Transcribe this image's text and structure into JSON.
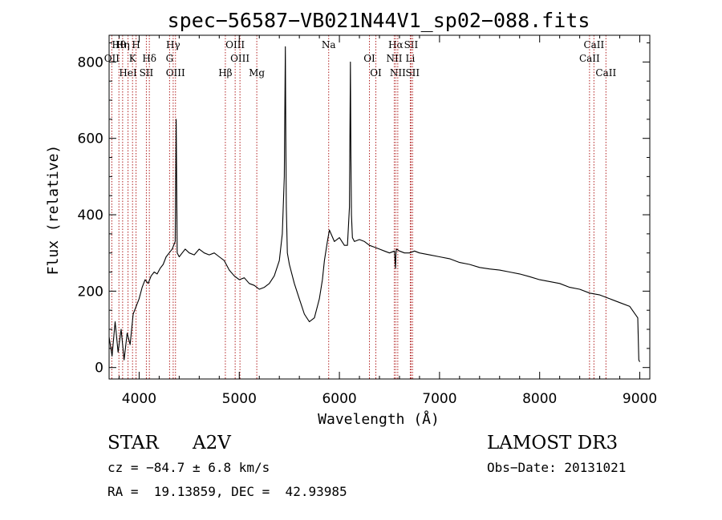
{
  "chart_data": {
    "type": "line",
    "title": "spec−56587−VB021N44V1_sp02−088.fits",
    "xlabel": "Wavelength (Å)",
    "ylabel": "Flux (relative)",
    "xlim": [
      3700,
      9100
    ],
    "ylim": [
      -30,
      870
    ],
    "x_ticks": [
      4000,
      5000,
      6000,
      7000,
      8000,
      9000
    ],
    "y_ticks": [
      0,
      200,
      400,
      600,
      800
    ],
    "grid": false,
    "series": [
      {
        "name": "flux",
        "x": [
          3700,
          3730,
          3760,
          3790,
          3820,
          3850,
          3880,
          3910,
          3940,
          3970,
          4000,
          4030,
          4060,
          4090,
          4120,
          4150,
          4180,
          4210,
          4240,
          4270,
          4300,
          4330,
          4360,
          4370,
          4380,
          4400,
          4430,
          4460,
          4500,
          4550,
          4600,
          4650,
          4700,
          4750,
          4800,
          4850,
          4900,
          4950,
          5000,
          5050,
          5100,
          5150,
          5200,
          5250,
          5300,
          5350,
          5400,
          5430,
          5450,
          5460,
          5465,
          5470,
          5480,
          5500,
          5550,
          5600,
          5650,
          5700,
          5750,
          5800,
          5830,
          5850,
          5880,
          5900,
          5950,
          6000,
          6050,
          6080,
          6100,
          6110,
          6115,
          6120,
          6130,
          6150,
          6200,
          6250,
          6300,
          6350,
          6400,
          6450,
          6500,
          6550,
          6560,
          6565,
          6570,
          6600,
          6650,
          6700,
          6750,
          6800,
          6900,
          7000,
          7100,
          7200,
          7300,
          7400,
          7500,
          7600,
          7700,
          7800,
          7900,
          8000,
          8100,
          8200,
          8300,
          8400,
          8500,
          8600,
          8700,
          8800,
          8900,
          8980,
          8990,
          9000
        ],
        "y": [
          80,
          30,
          120,
          40,
          100,
          20,
          90,
          60,
          140,
          160,
          180,
          210,
          230,
          220,
          240,
          250,
          245,
          260,
          270,
          290,
          300,
          310,
          330,
          650,
          300,
          290,
          300,
          310,
          300,
          295,
          310,
          300,
          295,
          300,
          290,
          280,
          255,
          240,
          230,
          235,
          220,
          215,
          205,
          210,
          220,
          240,
          280,
          350,
          500,
          840,
          600,
          420,
          300,
          270,
          220,
          180,
          140,
          120,
          130,
          180,
          230,
          280,
          330,
          360,
          330,
          340,
          320,
          320,
          420,
          800,
          560,
          400,
          340,
          330,
          335,
          330,
          320,
          315,
          310,
          305,
          300,
          305,
          260,
          300,
          310,
          305,
          300,
          300,
          305,
          300,
          295,
          290,
          285,
          275,
          270,
          262,
          258,
          255,
          250,
          245,
          238,
          230,
          225,
          220,
          210,
          205,
          195,
          190,
          180,
          170,
          160,
          130,
          20,
          15
        ]
      }
    ],
    "annotations": {
      "spectral_lines": [
        {
          "name": "Hθ",
          "wavelength": 3798
        },
        {
          "name": "OII",
          "wavelength": 3727
        },
        {
          "name": "HeI",
          "wavelength": 3889
        },
        {
          "name": "Hη",
          "wavelength": 3835
        },
        {
          "name": "K",
          "wavelength": 3934
        },
        {
          "name": "SII",
          "wavelength": 4072
        },
        {
          "name": "H",
          "wavelength": 3969
        },
        {
          "name": "Hδ",
          "wavelength": 4102
        },
        {
          "name": "OIII",
          "wavelength": 4363
        },
        {
          "name": "Hγ",
          "wavelength": 4340
        },
        {
          "name": "G",
          "wavelength": 4304
        },
        {
          "name": "Hβ",
          "wavelength": 4861
        },
        {
          "name": "OIII",
          "wavelength": 4959
        },
        {
          "name": "OIII",
          "wavelength": 5007
        },
        {
          "name": "Mg",
          "wavelength": 5175
        },
        {
          "name": "Na",
          "wavelength": 5893
        },
        {
          "name": "OI",
          "wavelength": 6300
        },
        {
          "name": "OI",
          "wavelength": 6364
        },
        {
          "name": "Hα",
          "wavelength": 6563
        },
        {
          "name": "NII",
          "wavelength": 6548
        },
        {
          "name": "NII",
          "wavelength": 6583
        },
        {
          "name": "SII",
          "wavelength": 6716
        },
        {
          "name": "Li",
          "wavelength": 6708
        },
        {
          "name": "SII",
          "wavelength": 6731
        },
        {
          "name": "CaII",
          "wavelength": 8542
        },
        {
          "name": "CaII",
          "wavelength": 8498
        },
        {
          "name": "CaII",
          "wavelength": 8662
        }
      ],
      "line_color": "#b22222"
    }
  },
  "info": {
    "object_class": "STAR",
    "subclass": "A2V",
    "survey": "LAMOST DR3",
    "cz": "cz = −84.7 ± 6.8 km/s",
    "obs_date": "Obs−Date: 20131021",
    "coords": "RA =  19.13859, DEC =  42.93985"
  }
}
